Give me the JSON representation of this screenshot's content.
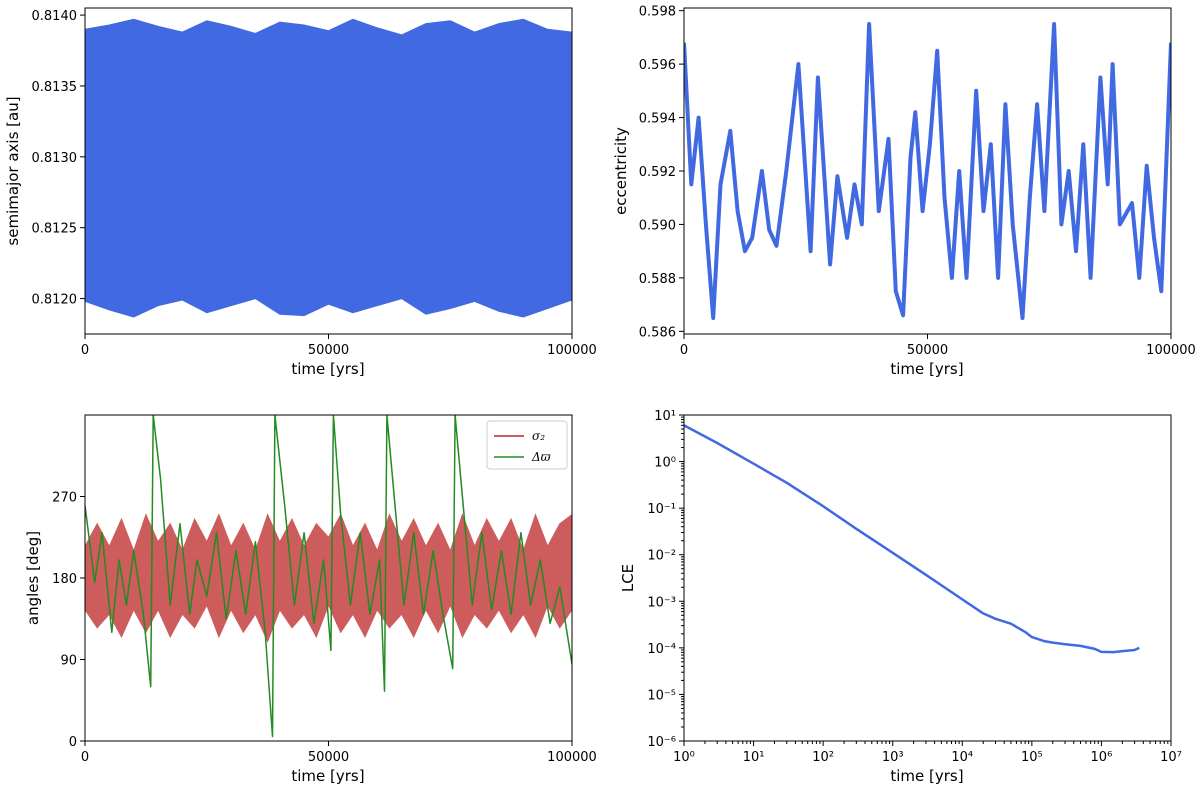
{
  "colors": {
    "blue": "#4169e1",
    "red": "#cd5c5c",
    "green": "#228b22"
  },
  "chart_data": [
    {
      "type": "line",
      "title": "",
      "xlabel": "time [yrs]",
      "ylabel": "semimajor axis [au]",
      "xlim": [
        0,
        100000
      ],
      "ylim": [
        0.81175,
        0.81405
      ],
      "xticks": [
        0,
        50000,
        100000
      ],
      "xtick_labels": [
        "0",
        "50000",
        "100000"
      ],
      "yticks": [
        0.812,
        0.8125,
        0.813,
        0.8135,
        0.814
      ],
      "ytick_labels": [
        "0.8120",
        "0.8125",
        "0.8130",
        "0.8135",
        "0.8140"
      ],
      "series": [
        {
          "name": "semimajor axis",
          "style": "band",
          "x": [
            0,
            5000,
            10000,
            15000,
            20000,
            25000,
            30000,
            35000,
            40000,
            45000,
            50000,
            55000,
            60000,
            65000,
            70000,
            75000,
            80000,
            85000,
            90000,
            95000,
            100000
          ],
          "upper": [
            0.8139,
            0.81393,
            0.81397,
            0.81392,
            0.81388,
            0.81396,
            0.81392,
            0.81387,
            0.81395,
            0.81393,
            0.81389,
            0.81397,
            0.81391,
            0.81386,
            0.81394,
            0.81396,
            0.81388,
            0.81394,
            0.81397,
            0.8139,
            0.81388
          ],
          "lower": [
            0.81198,
            0.81192,
            0.81187,
            0.81195,
            0.81199,
            0.8119,
            0.81195,
            0.812,
            0.81189,
            0.81188,
            0.81196,
            0.8119,
            0.81195,
            0.812,
            0.81189,
            0.81193,
            0.81198,
            0.81191,
            0.81187,
            0.81193,
            0.81199
          ]
        }
      ]
    },
    {
      "type": "line",
      "title": "",
      "xlabel": "time [yrs]",
      "ylabel": "eccentricity",
      "xlim": [
        0,
        100000
      ],
      "ylim": [
        0.5859,
        0.5981
      ],
      "xticks": [
        0,
        50000,
        100000
      ],
      "xtick_labels": [
        "0",
        "50000",
        "100000"
      ],
      "yticks": [
        0.586,
        0.588,
        0.59,
        0.592,
        0.594,
        0.596,
        0.598
      ],
      "ytick_labels": [
        "0.586",
        "0.588",
        "0.590",
        "0.592",
        "0.594",
        "0.596",
        "0.598"
      ],
      "series": [
        {
          "name": "eccentricity",
          "style": "line",
          "x": [
            0,
            1500,
            3000,
            4500,
            6000,
            7500,
            9500,
            11000,
            12500,
            14000,
            16000,
            17500,
            19000,
            21000,
            23500,
            26000,
            27500,
            30000,
            31500,
            33500,
            35000,
            36500,
            38000,
            40000,
            42000,
            43500,
            45000,
            46500,
            47500,
            49000,
            50500,
            52000,
            53500,
            55000,
            56500,
            58000,
            60000,
            61500,
            63000,
            64500,
            66000,
            67500,
            69500,
            71000,
            72500,
            74000,
            76000,
            77500,
            79000,
            80500,
            82000,
            83500,
            85500,
            87000,
            88000,
            89500,
            92000,
            93500,
            95000,
            96500,
            98000,
            100000
          ],
          "y": [
            0.5968,
            0.5915,
            0.594,
            0.59,
            0.5865,
            0.5915,
            0.5935,
            0.5905,
            0.589,
            0.5895,
            0.592,
            0.5898,
            0.5892,
            0.592,
            0.596,
            0.589,
            0.5955,
            0.5885,
            0.5918,
            0.5895,
            0.5915,
            0.59,
            0.5975,
            0.5905,
            0.5932,
            0.5875,
            0.5866,
            0.5925,
            0.5942,
            0.5905,
            0.593,
            0.5965,
            0.591,
            0.588,
            0.592,
            0.588,
            0.595,
            0.5905,
            0.593,
            0.588,
            0.5945,
            0.59,
            0.5865,
            0.591,
            0.5945,
            0.5905,
            0.5975,
            0.59,
            0.592,
            0.589,
            0.593,
            0.588,
            0.5955,
            0.5915,
            0.596,
            0.59,
            0.5908,
            0.588,
            0.5922,
            0.5895,
            0.5875,
            0.5968
          ]
        }
      ]
    },
    {
      "type": "line",
      "title": "",
      "xlabel": "time [yrs]",
      "ylabel": "angles [deg]",
      "xlim": [
        0,
        100000
      ],
      "ylim": [
        0,
        360
      ],
      "xticks": [
        0,
        50000,
        100000
      ],
      "xtick_labels": [
        "0",
        "50000",
        "100000"
      ],
      "yticks": [
        0,
        90,
        180,
        270
      ],
      "ytick_labels": [
        "0",
        "90",
        "180",
        "270"
      ],
      "legend": {
        "position": "top-right",
        "entries": [
          "σ₂",
          "Δϖ"
        ]
      },
      "series": [
        {
          "name": "σ₂",
          "style": "band",
          "x": [
            0,
            2500,
            5000,
            7500,
            10000,
            12500,
            15000,
            17500,
            20000,
            22500,
            25000,
            27500,
            30000,
            32500,
            35000,
            37500,
            40000,
            42500,
            45000,
            47500,
            50000,
            52500,
            55000,
            57500,
            60000,
            62500,
            65000,
            67500,
            70000,
            72500,
            75000,
            77500,
            80000,
            82500,
            85000,
            87500,
            90000,
            92500,
            95000,
            97500,
            100000
          ],
          "upper": [
            215,
            240,
            215,
            245,
            210,
            250,
            220,
            240,
            210,
            245,
            220,
            250,
            215,
            240,
            210,
            250,
            220,
            245,
            215,
            240,
            225,
            250,
            215,
            240,
            210,
            250,
            220,
            245,
            215,
            240,
            210,
            250,
            215,
            245,
            220,
            245,
            210,
            250,
            215,
            240,
            250
          ],
          "lower": [
            145,
            125,
            140,
            115,
            145,
            120,
            145,
            115,
            140,
            125,
            150,
            115,
            145,
            120,
            140,
            110,
            145,
            125,
            140,
            115,
            150,
            120,
            140,
            115,
            145,
            125,
            140,
            115,
            145,
            120,
            150,
            115,
            140,
            125,
            145,
            120,
            140,
            115,
            150,
            125,
            145
          ]
        },
        {
          "name": "Δϖ",
          "style": "line",
          "x": [
            0,
            2000,
            3500,
            5500,
            7000,
            8500,
            10000,
            12000,
            13500,
            14000,
            15500,
            17500,
            19500,
            21500,
            23000,
            25000,
            27000,
            29000,
            31000,
            33000,
            35000,
            37000,
            38500,
            39000,
            41000,
            43000,
            45000,
            47000,
            49000,
            50500,
            51000,
            52500,
            54500,
            56500,
            58500,
            60500,
            61500,
            62000,
            63500,
            65500,
            67500,
            69500,
            71500,
            73500,
            75500,
            76000,
            77500,
            79500,
            81500,
            83500,
            85500,
            87500,
            89500,
            91500,
            93500,
            95500,
            97500,
            100000
          ],
          "y": [
            260,
            175,
            230,
            120,
            200,
            150,
            210,
            140,
            60,
            360,
            290,
            150,
            240,
            140,
            200,
            160,
            230,
            135,
            210,
            140,
            220,
            120,
            5,
            360,
            260,
            150,
            230,
            130,
            200,
            100,
            360,
            250,
            150,
            230,
            140,
            200,
            55,
            360,
            270,
            150,
            230,
            140,
            210,
            140,
            80,
            360,
            270,
            150,
            230,
            145,
            210,
            140,
            230,
            150,
            200,
            130,
            170,
            85
          ]
        }
      ]
    },
    {
      "type": "line",
      "title": "",
      "xlabel": "time [yrs]",
      "ylabel": "LCE",
      "xscale": "log",
      "yscale": "log",
      "xlim": [
        1,
        10000000
      ],
      "ylim": [
        1e-06,
        10
      ],
      "xtick_labels": [
        "10⁰",
        "10¹",
        "10²",
        "10³",
        "10⁴",
        "10⁵",
        "10⁶",
        "10⁷"
      ],
      "ytick_labels": [
        "10⁻⁶",
        "10⁻⁵",
        "10⁻⁴",
        "10⁻³",
        "10⁻²",
        "10⁻¹",
        "10⁰",
        "10¹"
      ],
      "series": [
        {
          "name": "LCE",
          "style": "line",
          "x": [
            1,
            3,
            10,
            30,
            100,
            300,
            1000,
            3000,
            10000,
            20000,
            30000,
            50000,
            80000,
            100000,
            150000,
            200000,
            300000,
            500000,
            800000,
            1000000,
            1500000,
            2000000,
            3000000,
            3500000
          ],
          "y": [
            6,
            2.5,
            0.9,
            0.35,
            0.11,
            0.036,
            0.011,
            0.0037,
            0.0011,
            0.00055,
            0.00042,
            0.00033,
            0.00022,
            0.00017,
            0.00014,
            0.00013,
            0.00012,
            0.00011,
            9.5e-05,
            8.2e-05,
            8.1e-05,
            8.5e-05,
            9e-05,
            0.0001
          ]
        }
      ]
    }
  ]
}
